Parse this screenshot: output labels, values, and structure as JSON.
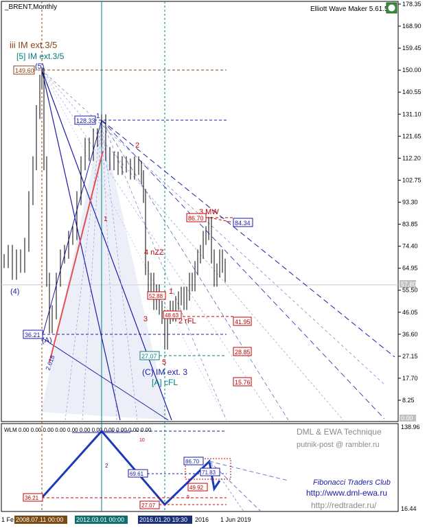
{
  "header": {
    "symbol": "_BRENT,Monthly",
    "indicator_name": "Elliott Wave Maker 5.61.5"
  },
  "main_axis": {
    "ticks": [
      "178.35",
      "168.90",
      "159.45",
      "150.00",
      "140.55",
      "131.10",
      "121.65",
      "112.20",
      "102.75",
      "93.30",
      "83.85",
      "74.40",
      "64.95",
      "55.50",
      "46.05",
      "36.60",
      "27.15",
      "17.70",
      "8.25"
    ],
    "current_price": "57.80",
    "bottom_label": "0.00"
  },
  "wave_labels": {
    "iii_ext": "iii IM ext.3/5",
    "wave5_ext": "[5] IM ext.3/5",
    "wave5": "(5)",
    "wave4": "(4)",
    "waveA": "(A)",
    "wave1_top": "1",
    "wave2": "2",
    "wave1_mid": "1",
    "wave4_nzz": "4 nZZ",
    "wave3_mw": "3 MW",
    "wave1_red": "1",
    "wave3_red": "3",
    "wave2_rfl": "2 rFL",
    "wave5_red": "5",
    "waveC_ext": "(C) IM ext. 3",
    "waveA_cfl": "[A] cFL",
    "diag_label": "2.618"
  },
  "price_boxes": {
    "p149_60": "149.60",
    "p128_33": "128.33",
    "p36_21": "36.21",
    "p27_07": "27.07",
    "p86_70": "86.70",
    "p84_34": "84.34",
    "p41_95": "41.95",
    "p28_85": "28.85",
    "p15_76": "15.76",
    "p52_88": "52.88",
    "p48_63": "48.63"
  },
  "sub_panel": {
    "title": "WLM 0.00 0.00 0.00 0.00 0.00 0.00 0.00 0.00 0.00 0.00 0.00",
    "tick_top": "138.96",
    "tick_bottom": "16.44",
    "labels": {
      "l36_21": "36.21",
      "l69_61": "69.61",
      "l27_07": "27.07",
      "l86_70": "86.70",
      "l71_83": "71.83",
      "l49_92": "49.92",
      "n10": "10",
      "n2": "2",
      "n5": "5"
    },
    "watermark": {
      "line1": "DML & EWA Technique",
      "line2": "putnik-post @ rambler.ru",
      "line3": "Fibonacci   Traders   Club",
      "line4": "http://www.dml-ewa.ru",
      "line5": "http://redtrader.ru/"
    }
  },
  "time_axis": {
    "start": "1 Fe",
    "date1": "2008.07.11 00:00",
    "date2": "2012.03.01 00:00",
    "date3": "2016.01.20 19:30",
    "year_2016": "2016",
    "end": "1 Jun 2019"
  },
  "colors": {
    "blue": "#1a1aa8",
    "red": "#c00000",
    "teal": "#008080",
    "brown": "#8b4513",
    "gray": "#808080"
  },
  "chart_data": {
    "type": "line",
    "title": "_BRENT,Monthly",
    "xlabel": "",
    "ylabel": "",
    "ylim": [
      0,
      178.35
    ],
    "x": [
      "2008-07",
      "2009-01",
      "2011-04",
      "2012-03",
      "2014-06",
      "2016-01",
      "2018-10",
      "2019-06"
    ],
    "series": [
      {
        "values": [
          149.6,
          36.21,
          126.0,
          128.33,
          115.0,
          27.07,
          86.7,
          62.0
        ]
      }
    ]
  }
}
